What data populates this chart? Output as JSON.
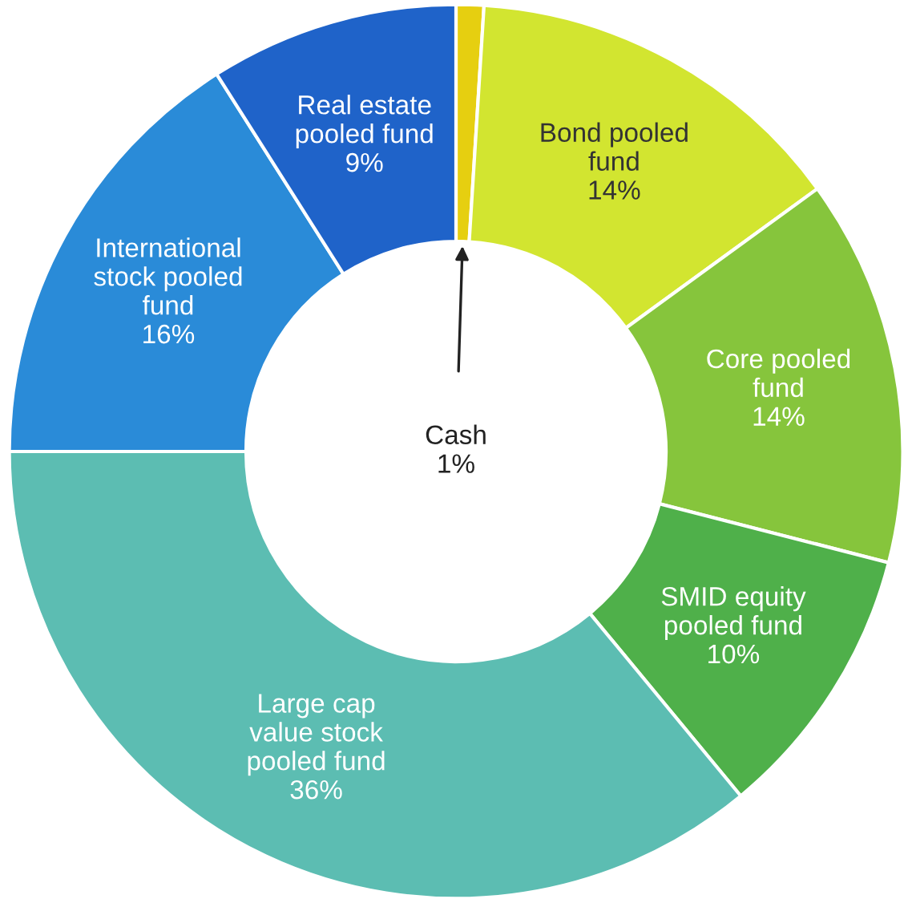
{
  "chart_data": {
    "type": "donut",
    "categories": [
      "Cash",
      "Bond pooled\nfund",
      "Core pooled\nfund",
      "SMID equity\npooled fund",
      "Large cap\nvalue stock\npooled fund",
      "International\nstock pooled\nfund",
      "Real estate\npooled fund"
    ],
    "values": [
      1,
      14,
      14,
      10,
      36,
      16,
      9
    ],
    "value_labels": [
      "1%",
      "14%",
      "14%",
      "10%",
      "36%",
      "16%",
      "9%"
    ],
    "colors": [
      "#e6cf10",
      "#d2e530",
      "#86c53c",
      "#4fb04a",
      "#5cbdb2",
      "#2a8bd8",
      "#1f63c9"
    ],
    "legend": false
  }
}
